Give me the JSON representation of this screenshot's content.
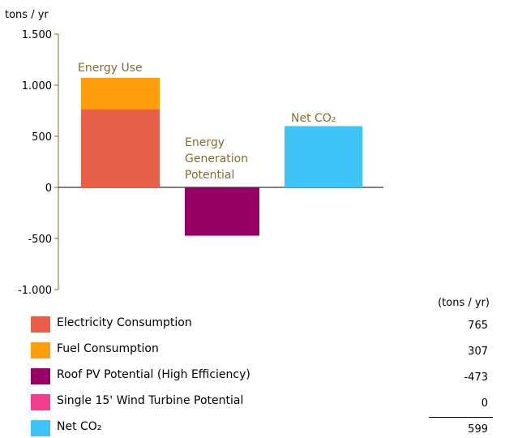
{
  "chart_data": {
    "type": "bar",
    "ylabel": "tons / yr",
    "ylim": [
      -1000,
      1500
    ],
    "yticks": [
      1500,
      1000,
      500,
      0,
      -500,
      -1000
    ],
    "ytick_labels": [
      "1.500",
      "1.000",
      "500",
      "0",
      "-500",
      "-1.000"
    ],
    "grid": false,
    "categories": [
      {
        "label_lines": [
          "Energy Use"
        ],
        "stack": [
          {
            "name": "Electricity Consumption",
            "value": 765,
            "color": "#e8604a"
          },
          {
            "name": "Fuel Consumption",
            "value": 307,
            "color": "#ff9e0a"
          }
        ]
      },
      {
        "label_lines": [
          "Energy",
          "Generation",
          "Potential"
        ],
        "stack": [
          {
            "name": "Roof PV Potential (High Efficiency)",
            "value": -473,
            "color": "#990066"
          },
          {
            "name": "Single 15' Wind Turbine Potential",
            "value": 0,
            "color": "#f03f8f"
          }
        ]
      },
      {
        "label_lines": [
          "Net CO₂"
        ],
        "stack": [
          {
            "name": "Net CO₂",
            "value": 599,
            "color": "#3ec4f7"
          }
        ]
      }
    ]
  },
  "legend": {
    "units_header": "(tons / yr)",
    "items": [
      {
        "label": "Electricity Consumption",
        "value": "765",
        "color": "#e8604a"
      },
      {
        "label": "Fuel Consumption",
        "value": "307",
        "color": "#ff9e0a"
      },
      {
        "label": "Roof PV Potential (High Efficiency)",
        "value": "-473",
        "color": "#990066"
      },
      {
        "label": "Single 15' Wind Turbine Potential",
        "value": "0",
        "color": "#f03f8f"
      },
      {
        "label": "Net CO₂",
        "value": "599",
        "color": "#3ec4f7"
      }
    ]
  }
}
